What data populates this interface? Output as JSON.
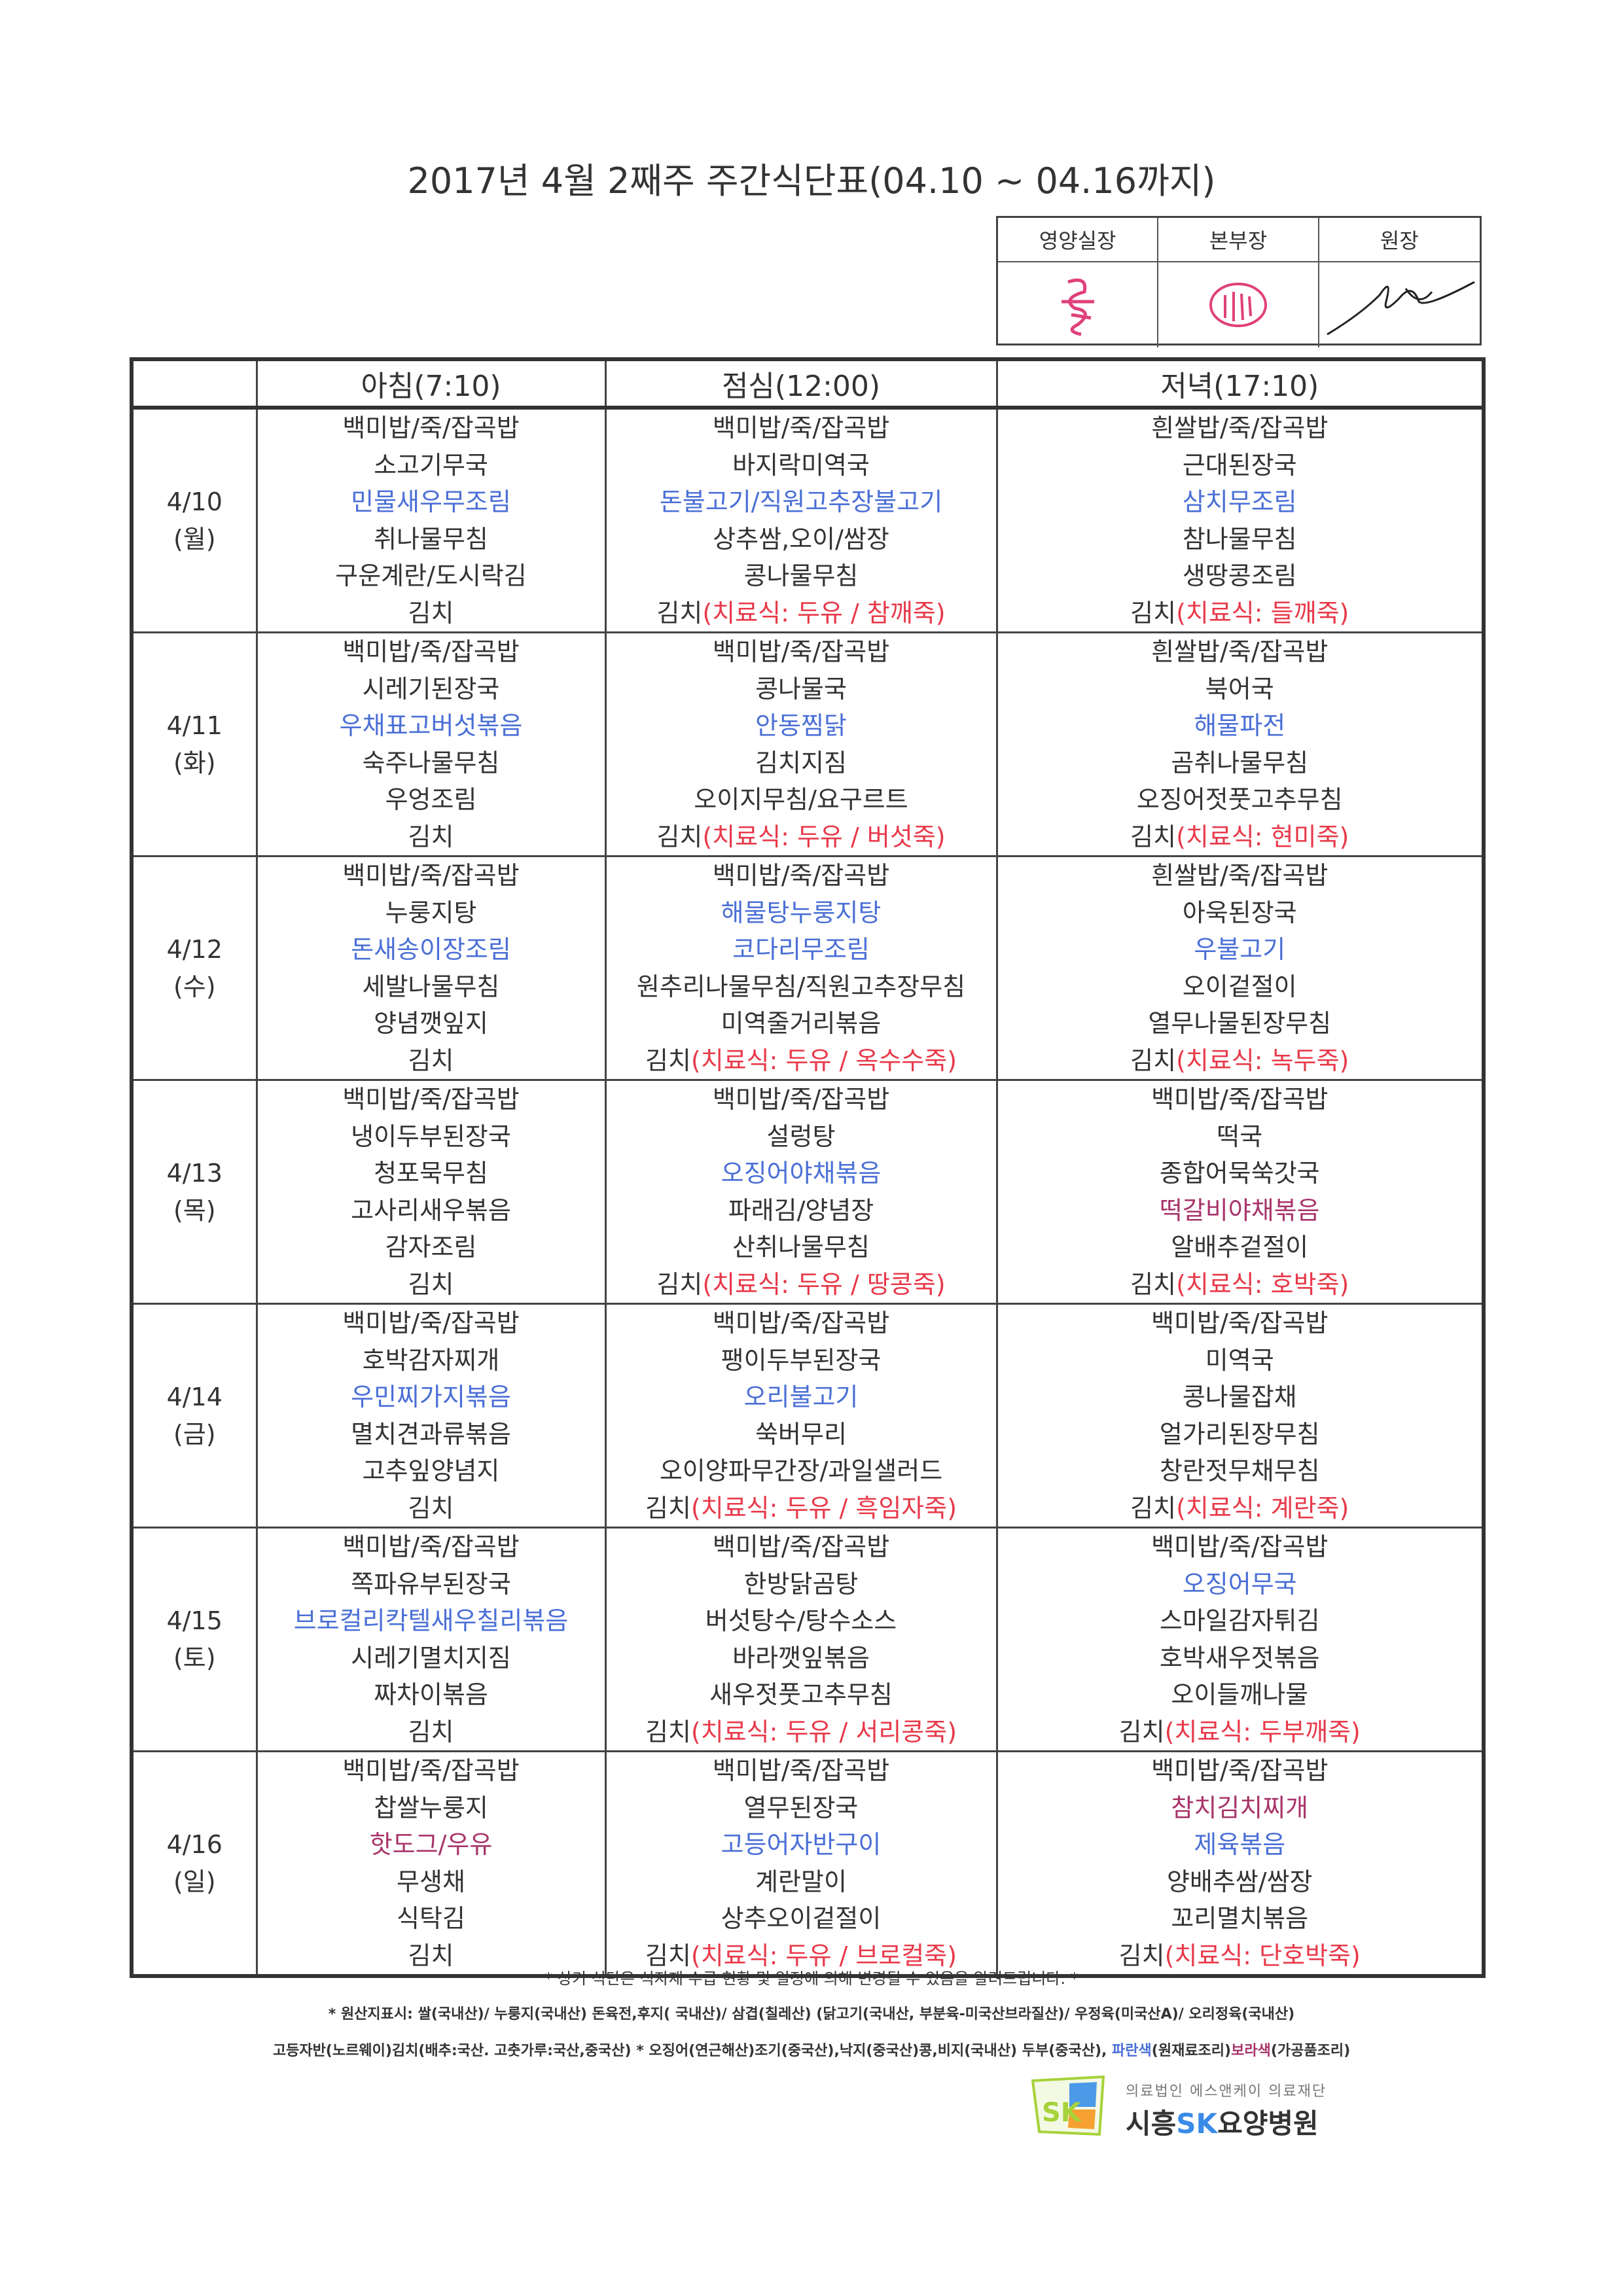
{
  "title": "2017년 4월 2째주 주간식단표(04.10 ~ 04.16까지)",
  "approval": {
    "headers": [
      "영양실장",
      "본부장",
      "원장"
    ]
  },
  "table": {
    "headers": [
      "",
      "아침(7:10)",
      "점심(12:00)",
      "저녁(17:10)"
    ],
    "days": [
      {
        "date": "4/10",
        "weekday": "(월)",
        "meals": [
          [
            {
              "t": "백미밥/죽/잡곡밥"
            },
            {
              "t": "소고기무국"
            },
            {
              "t": "민물새우무조림",
              "c": "blue"
            },
            {
              "t": "취나물무침"
            },
            {
              "t": "구운계란/도시락김"
            },
            {
              "t": "김치"
            }
          ],
          [
            {
              "t": "백미밥/죽/잡곡밥"
            },
            {
              "t": "바지락미역국"
            },
            {
              "t": "돈불고기/직원고추장불고기",
              "c": "blue"
            },
            {
              "t": "상추쌈,오이/쌈장"
            },
            {
              "t": "콩나물무침"
            },
            {
              "t": "김치",
              "r": "(치료식: 두유 / 참깨죽)"
            }
          ],
          [
            {
              "t": "흰쌀밥/죽/잡곡밥"
            },
            {
              "t": "근대된장국"
            },
            {
              "t": "삼치무조림",
              "c": "blue"
            },
            {
              "t": "참나물무침"
            },
            {
              "t": "생땅콩조림"
            },
            {
              "t": "김치",
              "r": "(치료식: 들깨죽)"
            }
          ]
        ]
      },
      {
        "date": "4/11",
        "weekday": "(화)",
        "meals": [
          [
            {
              "t": "백미밥/죽/잡곡밥"
            },
            {
              "t": "시레기된장국"
            },
            {
              "t": "우채표고버섯볶음",
              "c": "blue"
            },
            {
              "t": "숙주나물무침"
            },
            {
              "t": "우엉조림"
            },
            {
              "t": "김치"
            }
          ],
          [
            {
              "t": "백미밥/죽/잡곡밥"
            },
            {
              "t": "콩나물국"
            },
            {
              "t": "안동찜닭",
              "c": "blue"
            },
            {
              "t": "김치지짐"
            },
            {
              "t": "오이지무침/요구르트"
            },
            {
              "t": "김치",
              "r": "(치료식: 두유 / 버섯죽)"
            }
          ],
          [
            {
              "t": "흰쌀밥/죽/잡곡밥"
            },
            {
              "t": "북어국"
            },
            {
              "t": "해물파전",
              "c": "blue"
            },
            {
              "t": "곰취나물무침"
            },
            {
              "t": "오징어젓풋고추무침"
            },
            {
              "t": "김치",
              "r": "(치료식: 현미죽)"
            }
          ]
        ]
      },
      {
        "date": "4/12",
        "weekday": "(수)",
        "meals": [
          [
            {
              "t": "백미밥/죽/잡곡밥"
            },
            {
              "t": "누룽지탕"
            },
            {
              "t": "돈새송이장조림",
              "c": "blue"
            },
            {
              "t": "세발나물무침"
            },
            {
              "t": "양념깻잎지"
            },
            {
              "t": "김치"
            }
          ],
          [
            {
              "t": "백미밥/죽/잡곡밥"
            },
            {
              "t": "해물탕누룽지탕",
              "c": "blue"
            },
            {
              "t": "코다리무조림",
              "c": "blue"
            },
            {
              "t": "원추리나물무침/직원고추장무침"
            },
            {
              "t": "미역줄거리볶음"
            },
            {
              "t": "김치",
              "r": "(치료식: 두유 / 옥수수죽)"
            }
          ],
          [
            {
              "t": "흰쌀밥/죽/잡곡밥"
            },
            {
              "t": "아욱된장국"
            },
            {
              "t": "우불고기",
              "c": "blue"
            },
            {
              "t": "오이겉절이"
            },
            {
              "t": "열무나물된장무침"
            },
            {
              "t": "김치",
              "r": "(치료식: 녹두죽)"
            }
          ]
        ]
      },
      {
        "date": "4/13",
        "weekday": "(목)",
        "meals": [
          [
            {
              "t": "백미밥/죽/잡곡밥"
            },
            {
              "t": "냉이두부된장국"
            },
            {
              "t": "청포묵무침"
            },
            {
              "t": "고사리새우볶음"
            },
            {
              "t": "감자조림"
            },
            {
              "t": "김치"
            }
          ],
          [
            {
              "t": "백미밥/죽/잡곡밥"
            },
            {
              "t": "설렁탕"
            },
            {
              "t": "오징어야채볶음",
              "c": "blue"
            },
            {
              "t": "파래김/양념장"
            },
            {
              "t": "산취나물무침"
            },
            {
              "t": "김치",
              "r": "(치료식: 두유 / 땅콩죽)"
            }
          ],
          [
            {
              "t": "백미밥/죽/잡곡밥"
            },
            {
              "t": "떡국"
            },
            {
              "t": "종합어묵쑥갓국"
            },
            {
              "t": "떡갈비야채볶음",
              "c": "purple"
            },
            {
              "t": "알배추겉절이"
            },
            {
              "t": "김치",
              "r": "(치료식: 호박죽)"
            }
          ]
        ]
      },
      {
        "date": "4/14",
        "weekday": "(금)",
        "meals": [
          [
            {
              "t": "백미밥/죽/잡곡밥"
            },
            {
              "t": "호박감자찌개"
            },
            {
              "t": "우민찌가지볶음",
              "c": "blue"
            },
            {
              "t": "멸치견과류볶음"
            },
            {
              "t": "고추잎양념지"
            },
            {
              "t": "김치"
            }
          ],
          [
            {
              "t": "백미밥/죽/잡곡밥"
            },
            {
              "t": "팽이두부된장국"
            },
            {
              "t": "오리불고기",
              "c": "blue"
            },
            {
              "t": "쑥버무리"
            },
            {
              "t": "오이양파무간장/과일샐러드"
            },
            {
              "t": "김치",
              "r": "(치료식: 두유 / 흑임자죽)"
            }
          ],
          [
            {
              "t": "백미밥/죽/잡곡밥"
            },
            {
              "t": "미역국"
            },
            {
              "t": "콩나물잡채"
            },
            {
              "t": "얼가리된장무침"
            },
            {
              "t": "창란젓무채무침"
            },
            {
              "t": "김치",
              "r": "(치료식: 계란죽)"
            }
          ]
        ]
      },
      {
        "date": "4/15",
        "weekday": "(토)",
        "meals": [
          [
            {
              "t": "백미밥/죽/잡곡밥"
            },
            {
              "t": "쪽파유부된장국"
            },
            {
              "t": "브로컬리칵텔새우칠리볶음",
              "c": "blue"
            },
            {
              "t": "시레기멸치지짐"
            },
            {
              "t": "짜차이볶음"
            },
            {
              "t": "김치"
            }
          ],
          [
            {
              "t": "백미밥/죽/잡곡밥"
            },
            {
              "t": "한방닭곰탕"
            },
            {
              "t": "버섯탕수/탕수소스"
            },
            {
              "t": "바라깻잎볶음"
            },
            {
              "t": "새우젓풋고추무침"
            },
            {
              "t": "김치",
              "r": "(치료식: 두유 / 서리콩죽)"
            }
          ],
          [
            {
              "t": "백미밥/죽/잡곡밥"
            },
            {
              "t": "오징어무국",
              "c": "blue"
            },
            {
              "t": "스마일감자튀김"
            },
            {
              "t": "호박새우젓볶음"
            },
            {
              "t": "오이들깨나물"
            },
            {
              "t": "김치",
              "r": "(치료식: 두부깨죽)"
            }
          ]
        ]
      },
      {
        "date": "4/16",
        "weekday": "(일)",
        "meals": [
          [
            {
              "t": "백미밥/죽/잡곡밥"
            },
            {
              "t": "찹쌀누룽지"
            },
            {
              "t": "핫도그/우유",
              "c": "purple"
            },
            {
              "t": "무생채"
            },
            {
              "t": "식탁김"
            },
            {
              "t": "김치"
            }
          ],
          [
            {
              "t": "백미밥/죽/잡곡밥"
            },
            {
              "t": "열무된장국"
            },
            {
              "t": "고등어자반구이",
              "c": "blue"
            },
            {
              "t": "계란말이"
            },
            {
              "t": "상추오이겉절이"
            },
            {
              "t": "김치",
              "r": "(치료식: 두유 / 브로컬죽)"
            }
          ],
          [
            {
              "t": "백미밥/죽/잡곡밥"
            },
            {
              "t": "참치김치찌개",
              "c": "purple"
            },
            {
              "t": "제육볶음",
              "c": "blue"
            },
            {
              "t": "양배추쌈/쌈장"
            },
            {
              "t": "꼬리멸치볶음"
            },
            {
              "t": "김치",
              "r": "(치료식: 단호박죽)"
            }
          ]
        ]
      }
    ]
  },
  "footer": {
    "notice": "* 상기 식단은 식자재 수급 현황 및 일정에 의해 변경될 수 있음을 알려드립니다. *",
    "origin_line1": "* 원산지표시: 쌀(국내산)/ 누룽지(국내산) 돈육전,후지( 국내산)/ 삼겹(칠레산) (닭고기(국내산, 부분육-미국산브라질산)/ 우정육(미국산A)/ 오리정육(국내산)",
    "origin_line2": "고등자반(노르웨이)김치(배추:국산. 고춧가루:국산,중국산) * 오징어(연근해산)조기(중국산),낙지(중국산)콩,비지(국내산) 두부(중국산), ",
    "legend_blue": "파란색",
    "legend_blue_desc": "(원재료조리)",
    "legend_purple": "보라색",
    "legend_purple_desc": "(가공품조리)"
  },
  "logo": {
    "subtitle": "의료법인 에스앤케이 의료재단",
    "name_a": "시흥",
    "name_sk": "SK",
    "name_b": "요양병원",
    "mark": "SK"
  },
  "colors": {
    "blue": "#4a6fd6",
    "purple": "#a8346a",
    "red": "#e8394a",
    "text": "#333333"
  }
}
